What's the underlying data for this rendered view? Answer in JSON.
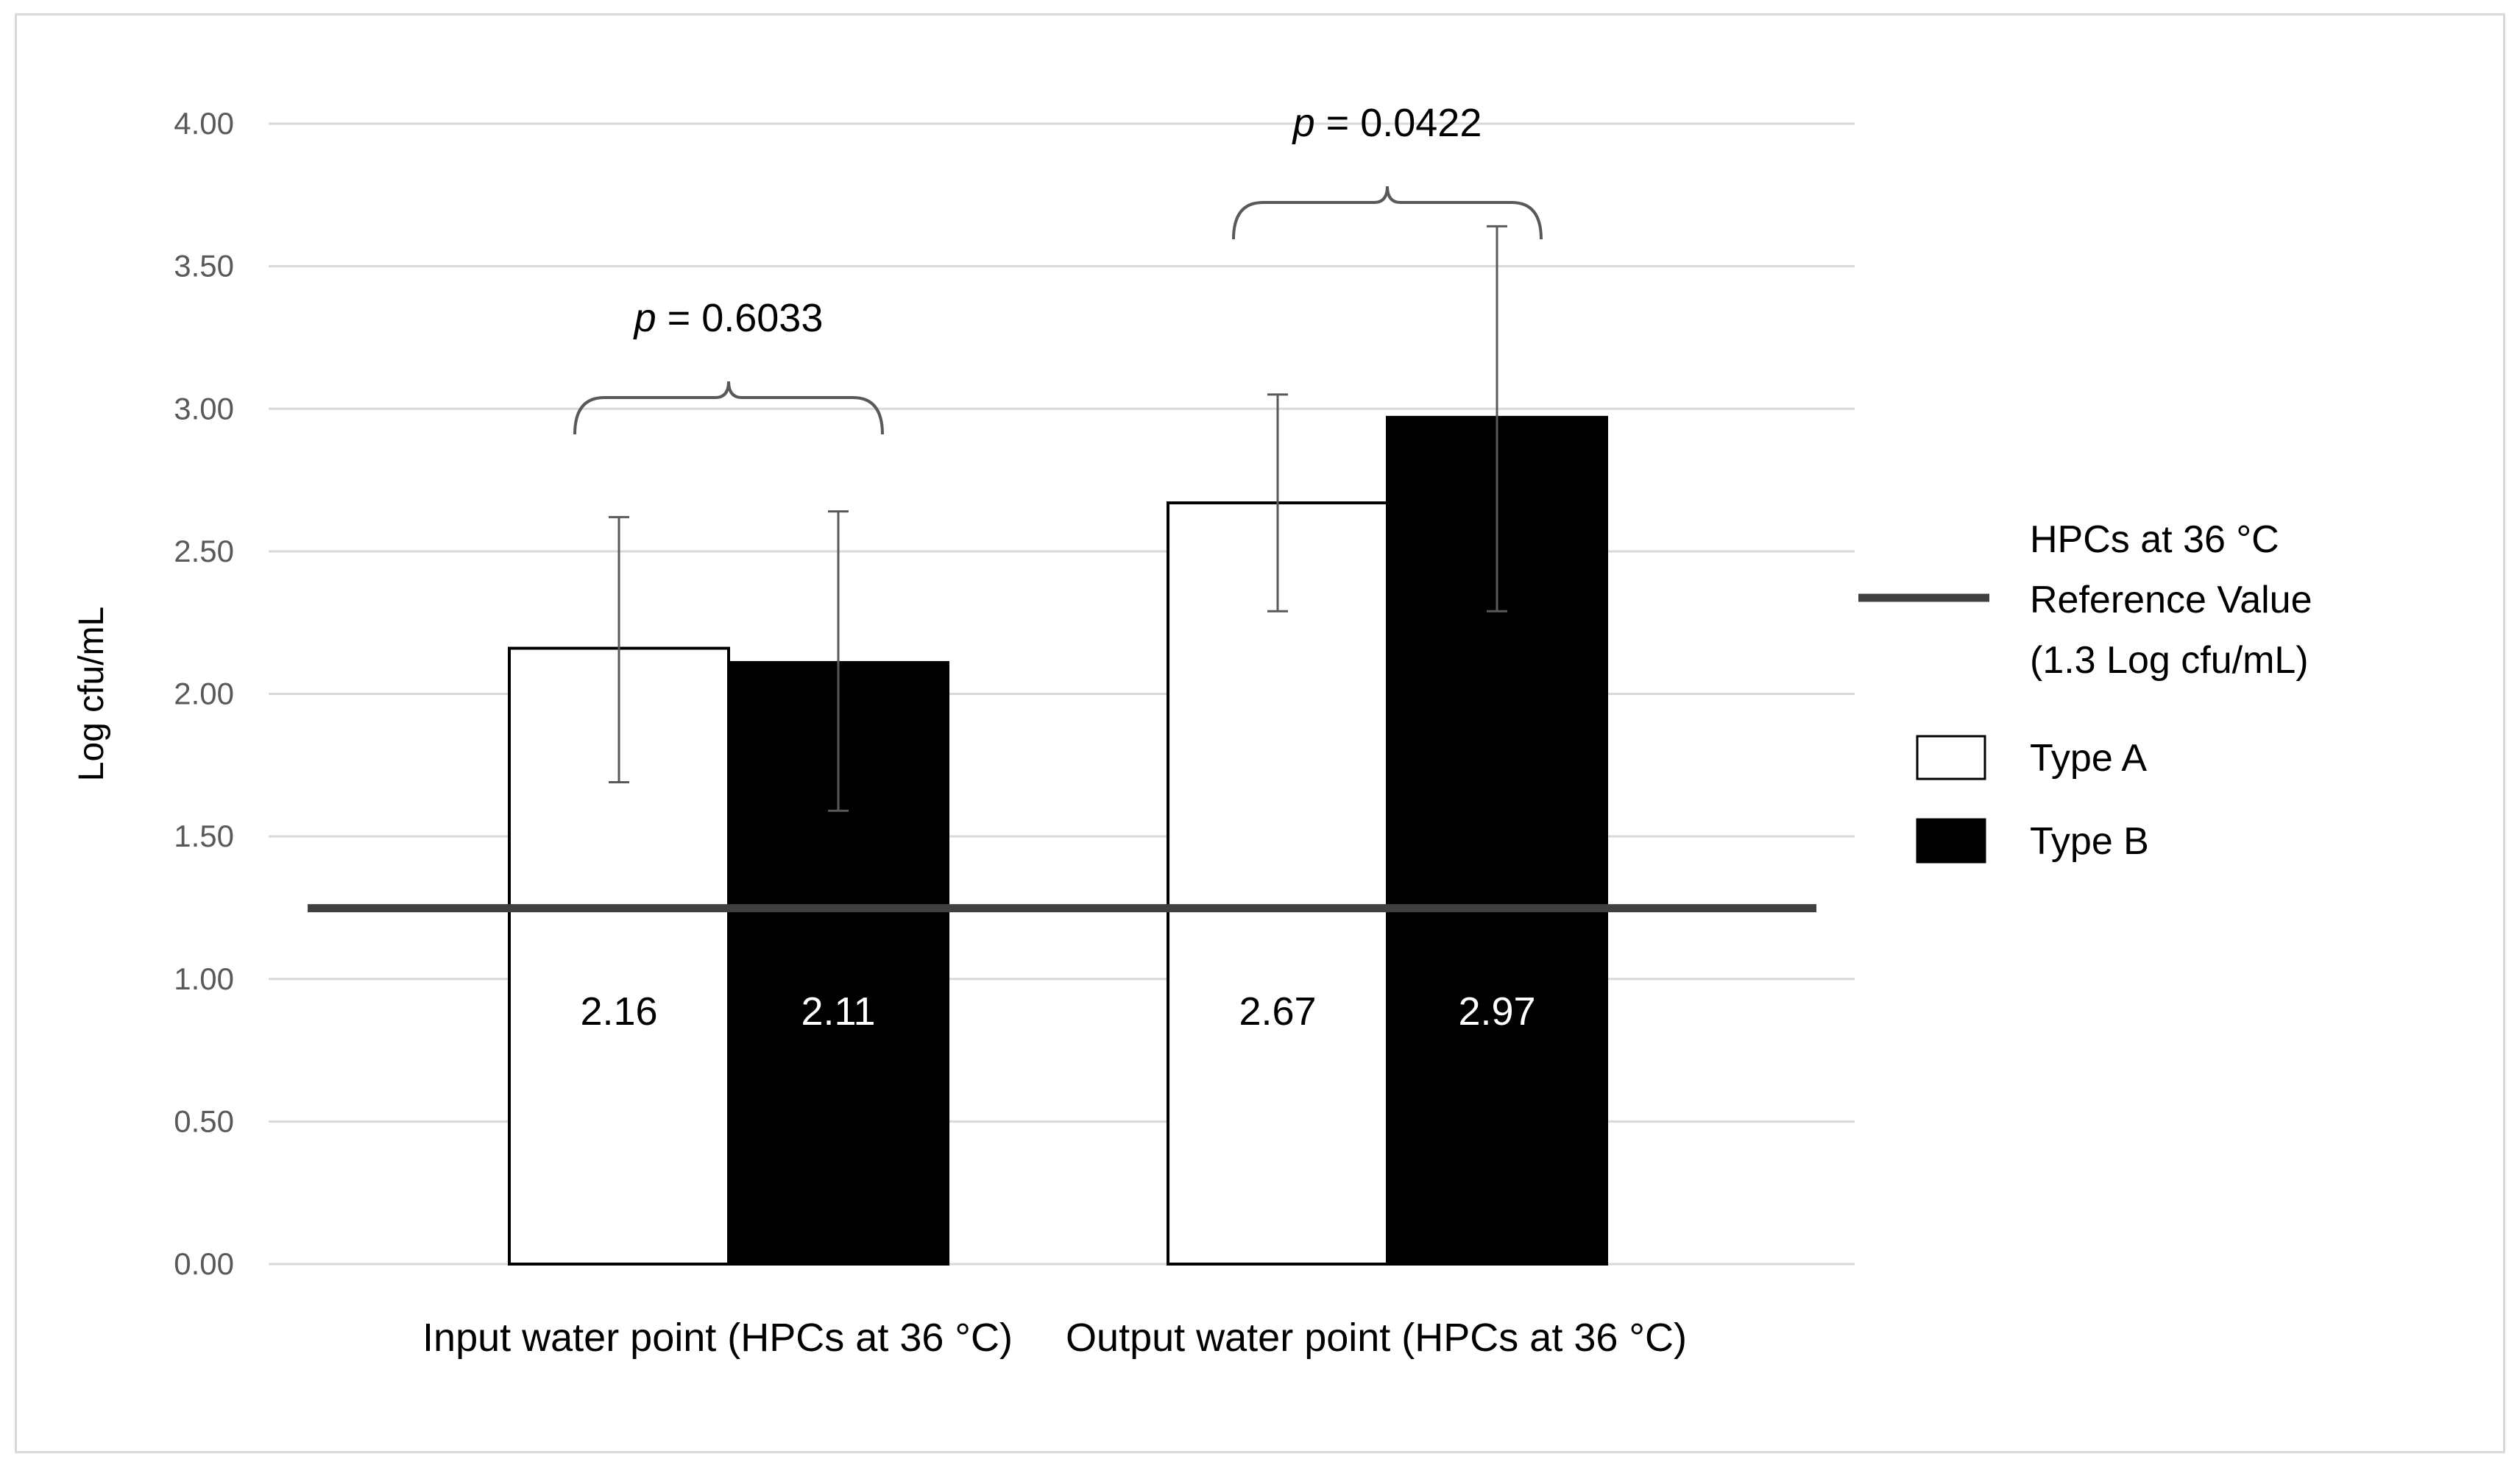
{
  "chart_data": {
    "type": "bar",
    "ylabel": "Log cfu/mL",
    "ylim": [
      0,
      4
    ],
    "yticks": [
      "0.00",
      "0.50",
      "1.00",
      "1.50",
      "2.00",
      "2.50",
      "3.00",
      "3.50",
      "4.00"
    ],
    "categories": [
      "Input water point (HPCs at 36 °C)",
      "Output water point (HPCs at 36 °C)"
    ],
    "series": [
      {
        "name": "Type A",
        "values": [
          2.16,
          2.67
        ],
        "error_low": [
          1.69,
          2.29
        ],
        "error_high": [
          2.62,
          3.05
        ],
        "fill": "#ffffff",
        "label_color": "#000000"
      },
      {
        "name": "Type B",
        "values": [
          2.11,
          2.97
        ],
        "error_low": [
          1.59,
          2.29
        ],
        "error_high": [
          2.64,
          3.64
        ],
        "fill": "#000000",
        "label_color": "#ffffff"
      }
    ],
    "data_labels": [
      [
        "2.16",
        "2.67"
      ],
      [
        "2.11",
        "2.97"
      ]
    ],
    "reference_line": {
      "value": 1.3,
      "label_lines": [
        "HPCs at 36 °C",
        "Reference Value",
        "(1.3 Log cfu/mL)"
      ],
      "color": "#404040"
    },
    "annotations": [
      {
        "p_symbol": "p",
        "p_text": " = 0.6033",
        "category": 0
      },
      {
        "p_symbol": "p",
        "p_text": " = 0.0422",
        "category": 1
      }
    ],
    "grid": true,
    "legend_position": "right"
  }
}
